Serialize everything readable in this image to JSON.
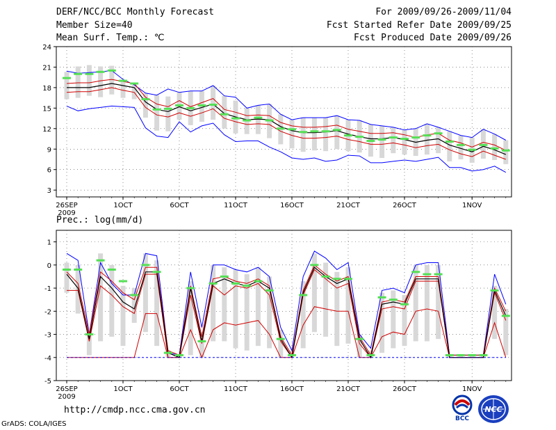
{
  "header": {
    "title": "DERF/NCC/BCC Monthly Forecast",
    "member_size": "Member Size=40",
    "variable": "Mean Surf. Temp.: ℃",
    "period": "For 2009/09/26-2009/11/04",
    "start_date": "Fcst Started Refer Date 2009/09/25",
    "produced_date": "Fcst Produced Date 2009/09/26"
  },
  "precip_label": "Prec.: log(mm/d)",
  "footer": {
    "url": "http://cmdp.ncc.cma.gov.cn",
    "grads": "GrADS: COLA/IGES",
    "logo_bcc": "BCC",
    "logo_ncc": "NCC"
  },
  "colors": {
    "ensemble_mean": "#000000",
    "std_band": "#d00000",
    "range": "#0000ff",
    "members_box": "#d8d8d8",
    "marker": "#55e055"
  },
  "chart_data": [
    {
      "type": "line",
      "title": "Mean Surf. Temp.: ℃",
      "ylim": [
        2,
        24
      ],
      "yticks": [
        "3",
        "6",
        "9",
        "12",
        "15",
        "18",
        "21",
        "24"
      ],
      "x_tick_labels": [
        "26SEP",
        "1OCT",
        "6OCT",
        "11OCT",
        "16OCT",
        "21OCT",
        "26OCT",
        "1NOV"
      ],
      "x_year_label": "2009",
      "x_tick_days": [
        0,
        5,
        10,
        15,
        20,
        25,
        30,
        36
      ],
      "days": 40,
      "series": [
        {
          "name": "mean",
          "values": [
            18,
            18,
            18,
            18.3,
            18.6,
            18.3,
            18,
            15.9,
            14.8,
            14.5,
            15.2,
            14.6,
            15.1,
            15.6,
            14.2,
            13.7,
            13.3,
            13.4,
            13.3,
            12.3,
            11.7,
            11.4,
            11.4,
            11.5,
            11.7,
            11.2,
            10.8,
            10.5,
            10.5,
            10.7,
            10.4,
            10.0,
            10.3,
            10.5,
            9.6,
            9.1,
            8.6,
            9.4,
            8.9,
            8.2
          ]
        },
        {
          "name": "mean_plus_sd",
          "values": [
            18.6,
            18.7,
            18.7,
            19,
            19.2,
            18.9,
            18.6,
            16.6,
            15.6,
            15.2,
            16.1,
            15.2,
            15.8,
            16.4,
            14.8,
            14.4,
            13.9,
            14,
            13.9,
            12.9,
            12.4,
            12.2,
            12.2,
            12.3,
            12.5,
            11.9,
            11.6,
            11.3,
            11.3,
            11.4,
            11.1,
            10.7,
            11.1,
            11.3,
            10.3,
            9.9,
            9.3,
            10,
            9.6,
            8.8
          ]
        },
        {
          "name": "mean_minus_sd",
          "values": [
            17.3,
            17.4,
            17.4,
            17.7,
            18,
            17.6,
            17.3,
            15.1,
            14.0,
            13.7,
            14.3,
            13.8,
            14.3,
            14.9,
            13.5,
            13.0,
            12.6,
            12.7,
            12.6,
            11.6,
            11.0,
            10.6,
            10.6,
            10.7,
            10.9,
            10.4,
            10.1,
            9.7,
            9.7,
            9.9,
            9.6,
            9.2,
            9.5,
            9.7,
            8.9,
            8.3,
            7.9,
            8.7,
            8.1,
            7.5
          ]
        },
        {
          "name": "max",
          "values": [
            20.4,
            20.1,
            20.2,
            20.3,
            20.5,
            19.2,
            18.4,
            17.2,
            16.9,
            17.8,
            17.3,
            17.5,
            17.5,
            18.3,
            16.8,
            16.6,
            15.0,
            15.4,
            15.6,
            14.1,
            13.3,
            13.6,
            13.6,
            13.6,
            13.9,
            13.3,
            13.2,
            12.6,
            12.4,
            12.2,
            11.8,
            12.0,
            12.7,
            12.2,
            11.6,
            11.0,
            10.7,
            11.9,
            11.2,
            10.3
          ]
        },
        {
          "name": "min",
          "values": [
            15.3,
            14.6,
            14.9,
            15.1,
            15.3,
            15.2,
            15.1,
            12.1,
            10.9,
            10.7,
            13.0,
            11.5,
            12.4,
            12.8,
            11.1,
            10.1,
            10.2,
            10.2,
            9.3,
            8.6,
            7.7,
            7.5,
            7.7,
            7.2,
            7.4,
            8.1,
            8.0,
            7.0,
            7.0,
            7.2,
            7.4,
            7.2,
            7.5,
            7.8,
            6.3,
            6.3,
            5.8,
            6.0,
            6.5,
            5.6
          ]
        },
        {
          "name": "box_top",
          "values": [
            20.3,
            21.1,
            21.3,
            21.1,
            21.2,
            19.1,
            18.4,
            17.2,
            16.9,
            16.7,
            17.3,
            17.5,
            17.5,
            18.3,
            16.8,
            16.1,
            15.0,
            15.4,
            15.6,
            14.1,
            13.3,
            13.6,
            13.6,
            13.6,
            13.9,
            13.3,
            13.2,
            12.6,
            12.4,
            12.2,
            11.8,
            12.0,
            12.7,
            12.2,
            11.6,
            11.0,
            10.7,
            11.9,
            11.2,
            10.3
          ]
        },
        {
          "name": "box_bottom",
          "values": [
            16.3,
            16.5,
            16.8,
            16.6,
            17.0,
            16.5,
            16.3,
            13.6,
            11.7,
            11.6,
            13.3,
            12.5,
            13.0,
            13.3,
            12.0,
            11.3,
            11.2,
            11.2,
            10.6,
            9.7,
            9.1,
            8.6,
            8.8,
            8.7,
            9.0,
            8.7,
            8.5,
            7.9,
            7.7,
            8.4,
            8.2,
            8.0,
            8.2,
            8.4,
            7.2,
            7.5,
            7.0,
            7.6,
            7.4,
            6.8
          ]
        },
        {
          "name": "marker",
          "values": [
            19.4,
            20.0,
            20.0,
            20.3,
            20.5,
            19.0,
            18.6,
            16.3,
            14.8,
            14.9,
            15.4,
            15.0,
            15.4,
            15.5,
            14.1,
            13.5,
            13.2,
            13.6,
            13.2,
            12.0,
            11.9,
            11.5,
            11.6,
            11.6,
            11.8,
            11.0,
            10.8,
            10.2,
            10.4,
            10.7,
            10.5,
            10.7,
            11.0,
            11.3,
            10.1,
            9.6,
            8.9,
            9.6,
            9.1,
            8.8
          ]
        }
      ]
    },
    {
      "type": "line",
      "title": "Prec.: log(mm/d)",
      "ylim": [
        -5,
        1.5
      ],
      "yticks": [
        "-5",
        "-4",
        "-3",
        "-2",
        "-1",
        "0",
        "1"
      ],
      "x_tick_labels": [
        "26SEP",
        "1OCT",
        "6OCT",
        "11OCT",
        "16OCT",
        "21OCT",
        "26OCT",
        "1NOV"
      ],
      "x_year_label": "2009",
      "x_tick_days": [
        0,
        5,
        10,
        15,
        20,
        25,
        30,
        36
      ],
      "days": 40,
      "series": [
        {
          "name": "mean",
          "values": [
            -0.4,
            -1.0,
            -3.2,
            -0.5,
            -1.0,
            -1.6,
            -1.9,
            -0.3,
            -0.3,
            -3.8,
            -4.0,
            -1.0,
            -3.3,
            -0.8,
            -0.6,
            -0.8,
            -0.9,
            -0.7,
            -1.0,
            -3.2,
            -4.0,
            -1.2,
            -0.1,
            -0.5,
            -0.8,
            -0.6,
            -3.2,
            -4.0,
            -1.7,
            -1.6,
            -1.7,
            -0.6,
            -0.6,
            -0.6,
            -4.0,
            -4.0,
            -4.0,
            -4.0,
            -1.1,
            -2.2
          ]
        },
        {
          "name": "mean_plus_sd",
          "values": [
            -0.3,
            -0.8,
            -3.0,
            -0.3,
            -0.7,
            -1.2,
            -1.5,
            -0.1,
            -0.1,
            -3.7,
            -3.9,
            -0.9,
            -3.1,
            -0.6,
            -0.5,
            -0.7,
            -0.8,
            -0.6,
            -0.9,
            -3.1,
            -3.9,
            -1.1,
            0.0,
            -0.4,
            -0.7,
            -0.5,
            -3.1,
            -3.9,
            -1.6,
            -1.5,
            -1.6,
            -0.5,
            -0.5,
            -0.5,
            -3.9,
            -3.9,
            -3.9,
            -3.9,
            -1.0,
            -2.0
          ]
        },
        {
          "name": "mean_minus_sd",
          "values": [
            -1.1,
            -1.1,
            -3.3,
            -0.9,
            -1.3,
            -1.8,
            -2.1,
            -0.4,
            -0.4,
            -4.0,
            -4.0,
            -1.3,
            -3.4,
            -0.9,
            -1.3,
            -0.9,
            -1.0,
            -0.8,
            -1.3,
            -3.3,
            -4.0,
            -1.3,
            -0.2,
            -0.6,
            -1.0,
            -0.8,
            -3.4,
            -4.0,
            -1.9,
            -1.8,
            -1.9,
            -0.7,
            -0.7,
            -0.7,
            -4.0,
            -4.0,
            -4.0,
            -4.0,
            -1.2,
            -2.4
          ]
        },
        {
          "name": "lower_red",
          "values": [
            -4,
            -4,
            -4,
            -4,
            -4,
            -4,
            -4,
            -2.1,
            -2.1,
            -4,
            -4,
            -2.8,
            -4,
            -2.8,
            -2.5,
            -2.6,
            -2.5,
            -2.4,
            -3.0,
            -4,
            -4,
            -2.6,
            -1.8,
            -1.9,
            -2.0,
            -2.0,
            -4,
            -4,
            -3.1,
            -2.9,
            -3.0,
            -2.0,
            -1.9,
            -2.0,
            -4,
            -4,
            -4,
            -4,
            -2.5,
            -4
          ]
        },
        {
          "name": "max",
          "values": [
            0.5,
            0.2,
            -3.0,
            0.1,
            -0.8,
            -1.3,
            -1.3,
            0.5,
            0.4,
            -3.8,
            -3.9,
            -0.3,
            -2.7,
            0.0,
            0.0,
            -0.2,
            -0.3,
            -0.1,
            -0.5,
            -2.7,
            -3.7,
            -0.5,
            0.6,
            0.3,
            -0.2,
            0.1,
            -3.0,
            -3.6,
            -1.1,
            -1.0,
            -1.2,
            0.0,
            0.1,
            0.1,
            -3.9,
            -3.9,
            -3.9,
            -3.9,
            -0.4,
            -1.7
          ]
        },
        {
          "name": "box_top",
          "values": [
            0.1,
            0.0,
            -2.9,
            0.5,
            0.0,
            -0.9,
            -1.0,
            0.5,
            0.2,
            -3.7,
            -3.9,
            -0.7,
            -2.9,
            0.0,
            -0.1,
            -0.2,
            -0.4,
            -0.1,
            -0.5,
            -2.8,
            -3.7,
            -0.7,
            0.5,
            0.1,
            -0.3,
            -0.1,
            -3.0,
            -3.7,
            -1.2,
            -1.1,
            -1.3,
            0.0,
            0.0,
            0.0,
            -3.9,
            -3.9,
            -3.9,
            -3.9,
            -0.9,
            -1.9
          ]
        },
        {
          "name": "box_bottom",
          "values": [
            -1.2,
            -2.1,
            -3.9,
            -3.3,
            -3.1,
            -3.5,
            -2.5,
            -2.9,
            -3.5,
            -4.0,
            -4.0,
            -3.9,
            -4.0,
            -3.3,
            -3.3,
            -3.6,
            -3.7,
            -3.5,
            -3.6,
            -4.0,
            -4.0,
            -3.6,
            -2.9,
            -3.1,
            -3.5,
            -3.4,
            -4.0,
            -4.0,
            -3.8,
            -3.6,
            -3.5,
            -3.3,
            -3.3,
            -3.2,
            -4.0,
            -4.0,
            -4.0,
            -4.0,
            -3.2,
            -3.9
          ]
        },
        {
          "name": "marker",
          "values": [
            -0.2,
            -0.2,
            -3.0,
            0.2,
            -0.2,
            -0.7,
            -1.3,
            0.0,
            -0.3,
            -3.8,
            -3.9,
            -1.0,
            -3.3,
            -0.8,
            -0.5,
            -0.8,
            -0.9,
            -0.7,
            -1.1,
            -3.2,
            -3.9,
            -1.3,
            0.0,
            -0.5,
            -0.6,
            -0.6,
            -3.2,
            -3.9,
            -1.4,
            -1.5,
            -1.7,
            -0.3,
            -0.4,
            -0.4,
            -3.9,
            -3.9,
            -3.9,
            -3.9,
            -1.1,
            -2.2
          ]
        }
      ]
    }
  ]
}
